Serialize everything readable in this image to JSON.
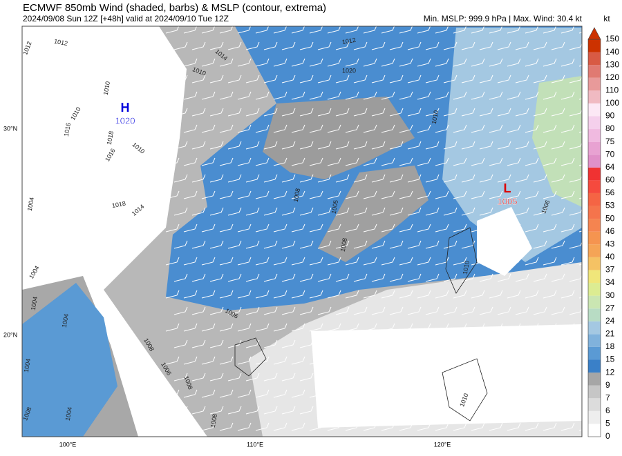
{
  "header": {
    "title": "ECMWF 850mb Wind (shaded, barbs) & MSLP (contour, extrema)",
    "subtitle": "2024/09/08 Sun 12Z [+48h] valid at 2024/09/10 Tue 12Z",
    "info": "Min. MSLP: 999.9 hPa | Max. Wind: 30.4 kt"
  },
  "colorbar": {
    "unit": "kt",
    "levels": [
      0,
      5,
      6,
      7,
      9,
      12,
      15,
      18,
      21,
      24,
      27,
      30,
      34,
      37,
      40,
      43,
      46,
      50,
      53,
      56,
      60,
      64,
      70,
      75,
      80,
      90,
      100,
      110,
      120,
      130,
      140,
      150
    ],
    "colors": [
      "#ffffff",
      "#eeeeee",
      "#dcdcdc",
      "#c6c6c6",
      "#a6a6a6",
      "#3a80c8",
      "#5a9ad4",
      "#80b2dc",
      "#a4c8e2",
      "#b8dcc4",
      "#cae6b2",
      "#dcec92",
      "#f0e67a",
      "#f5c264",
      "#f5a456",
      "#f59450",
      "#f58450",
      "#f5744c",
      "#f56444",
      "#f54a3e",
      "#f03232",
      "#e090c8",
      "#e8a2d2",
      "#f0bae0",
      "#f5d0ec",
      "#fce8f5",
      "#f0bac2",
      "#e89a9a",
      "#e07a72",
      "#d85a44",
      "#cc3200"
    ]
  },
  "map": {
    "lon_labels": [
      "100°E",
      "110°E",
      "120°E"
    ],
    "lat_labels": [
      "30°N",
      "20°N"
    ],
    "extrema": [
      {
        "symbol": "H",
        "value": "1020",
        "color": "#0000dd"
      },
      {
        "symbol": "L",
        "value": "1005",
        "color": "#dd0000"
      }
    ],
    "contour_labels": [
      "1012",
      "1012",
      "1010",
      "1014",
      "1010",
      "1010",
      "1016",
      "1018",
      "1016",
      "1010",
      "1018",
      "1014",
      "1004",
      "1004",
      "1004",
      "1004",
      "1008",
      "1006",
      "1008",
      "1006",
      "1008",
      "1005",
      "1008",
      "1010",
      "1012",
      "1020",
      "1006",
      "1010",
      "1010",
      "1008",
      "1008",
      "1004",
      "1004"
    ]
  }
}
